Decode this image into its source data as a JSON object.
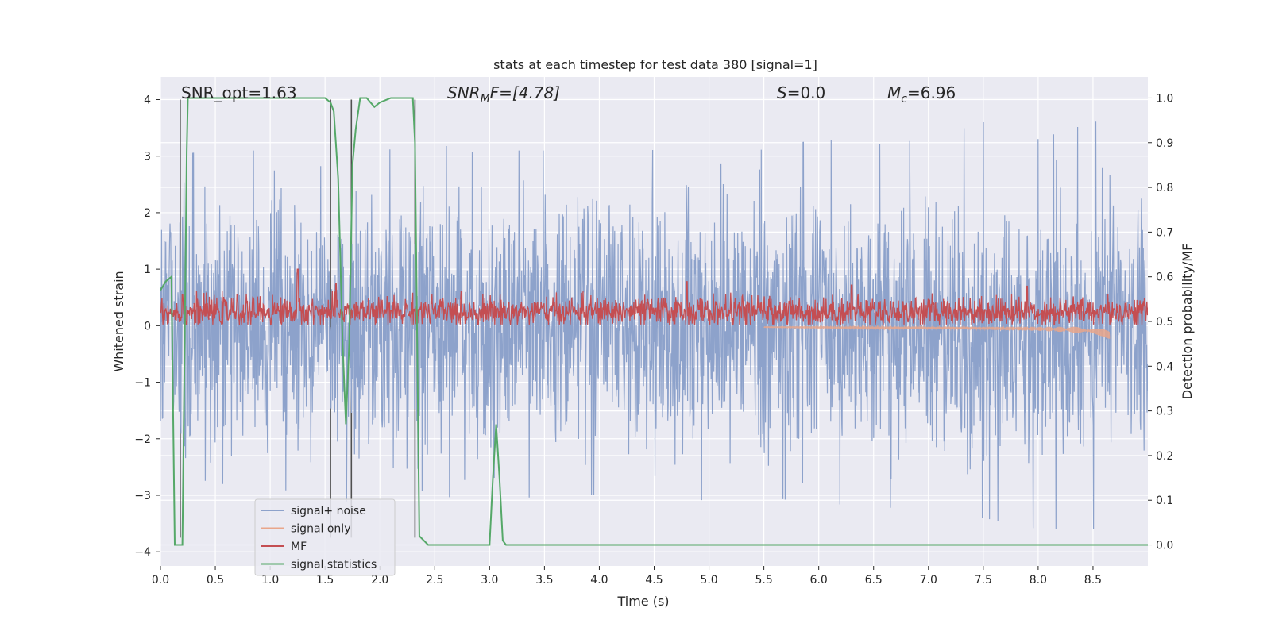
{
  "chart_data": {
    "type": "line",
    "title": "stats at each timestep for test data 380 [signal=1]",
    "xlabel": "Time (s)",
    "ylabel_left": "Whitened strain",
    "ylabel_right": "Detection probability/MF",
    "xlim": [
      0.0,
      9.0
    ],
    "ylim_left": [
      -4.25,
      4.4
    ],
    "ylim_right": [
      -0.047,
      1.047
    ],
    "x_ticks": [
      0.0,
      0.5,
      1.0,
      1.5,
      2.0,
      2.5,
      3.0,
      3.5,
      4.0,
      4.5,
      5.0,
      5.5,
      6.0,
      6.5,
      7.0,
      7.5,
      8.0,
      8.5
    ],
    "x_tick_labels": [
      "0.0",
      "0.5",
      "1.0",
      "1.5",
      "2.0",
      "2.5",
      "3.0",
      "3.5",
      "4.0",
      "4.5",
      "5.0",
      "5.5",
      "6.0",
      "6.5",
      "7.0",
      "7.5",
      "8.0",
      "8.5"
    ],
    "y_left_ticks": [
      -4,
      -3,
      -2,
      -1,
      0,
      1,
      2,
      3,
      4
    ],
    "y_left_tick_labels": [
      "−4",
      "−3",
      "−2",
      "−1",
      "0",
      "1",
      "2",
      "3",
      "4"
    ],
    "y_right_ticks": [
      0.0,
      0.1,
      0.2,
      0.3,
      0.4,
      0.5,
      0.6,
      0.7,
      0.8,
      0.9,
      1.0
    ],
    "y_right_tick_labels": [
      "0.0",
      "0.1",
      "0.2",
      "0.3",
      "0.4",
      "0.5",
      "0.6",
      "0.7",
      "0.8",
      "0.9",
      "1.0"
    ],
    "grid": true,
    "legend_position": "lower-left",
    "annotations": [
      {
        "text": "SNR_opt=1.63",
        "x": 0.19,
        "y": 4.1
      },
      {
        "text": "SNRₘF=[4.78]",
        "x": 2.6,
        "y": 4.1,
        "italic_part": "SNR"
      },
      {
        "text": "S=0.0",
        "x": 5.6,
        "y": 4.1
      },
      {
        "text": "Mᴄ=6.96",
        "x": 6.6,
        "y": 4.1
      }
    ],
    "annotation_text": {
      "snr_opt": "SNR_opt=1.63",
      "snr_mf_main": "SNR",
      "snr_mf_sub": "M",
      "snr_mf_tail": "F=[4.78]",
      "s_main": "S",
      "s_tail": "=0.0",
      "mc_main": "M",
      "mc_sub": "c",
      "mc_tail": "=6.96"
    },
    "vlines_x": [
      0.18,
      1.55,
      1.74,
      2.32
    ],
    "series": [
      {
        "name": "signal+ noise",
        "color": "#8da2cb",
        "axis": "left",
        "style": "dense-noise",
        "envelope_upper": [
          3.0,
          3.1,
          3.1,
          2.8,
          3.1,
          3.2,
          3.1,
          3.1,
          3.4,
          3.1,
          3.4,
          3.1,
          3.3,
          3.2,
          3.3,
          3.6,
          3.3,
          3.6,
          3.8
        ],
        "envelope_lower": [
          -2.5,
          -2.8,
          -2.8,
          -3.2,
          -3.0,
          -2.9,
          -3.4,
          -2.9,
          -3.0,
          -3.0,
          -3.1,
          -3.0,
          -3.2,
          -3.1,
          -3.5,
          -3.4,
          -3.6,
          -3.6,
          -3.6
        ],
        "envelope_x": [
          0.0,
          0.5,
          1.0,
          1.5,
          2.0,
          2.5,
          3.0,
          3.5,
          4.0,
          4.5,
          5.0,
          5.5,
          6.0,
          6.5,
          7.0,
          7.5,
          8.0,
          8.5,
          9.0
        ]
      },
      {
        "name": "signal only",
        "color": "#e9a68b",
        "axis": "left",
        "style": "chirp",
        "x": [
          5.5,
          6.0,
          6.5,
          7.0,
          7.5,
          8.0,
          8.3,
          8.5,
          8.6,
          8.65
        ],
        "amplitude": [
          0.01,
          0.02,
          0.03,
          0.04,
          0.05,
          0.07,
          0.1,
          0.15,
          0.22,
          0.3
        ]
      },
      {
        "name": "MF",
        "color": "#c44e52",
        "axis": "left",
        "style": "dense-noise-positive",
        "x": [
          0.0,
          9.0
        ],
        "mean": 0.25,
        "peak_x": [
          0.2,
          1.25,
          1.6,
          4.8,
          6.3,
          7.9
        ],
        "peak_y": [
          0.55,
          1.0,
          0.75,
          0.78,
          0.72,
          0.7
        ]
      },
      {
        "name": "signal statistics",
        "color": "#55a868",
        "axis": "right",
        "x": [
          0.0,
          0.05,
          0.1,
          0.13,
          0.16,
          0.2,
          0.24,
          0.25,
          0.26,
          0.3,
          0.4,
          0.6,
          0.8,
          1.0,
          1.2,
          1.4,
          1.5,
          1.55,
          1.58,
          1.62,
          1.66,
          1.69,
          1.72,
          1.75,
          1.78,
          1.82,
          1.88,
          1.95,
          2.0,
          2.1,
          2.2,
          2.3,
          2.32,
          2.36,
          2.44,
          2.6,
          2.8,
          3.0,
          3.03,
          3.06,
          3.09,
          3.12,
          3.15,
          3.2,
          3.5,
          4.0,
          5.0,
          6.0,
          7.0,
          8.0,
          9.0
        ],
        "y": [
          0.57,
          0.59,
          0.6,
          0.0,
          0.0,
          0.0,
          0.88,
          1.0,
          1.0,
          1.0,
          1.0,
          1.0,
          1.0,
          1.0,
          1.0,
          1.0,
          1.0,
          0.99,
          0.97,
          0.82,
          0.45,
          0.27,
          0.45,
          0.85,
          0.93,
          1.0,
          1.0,
          0.98,
          0.99,
          1.0,
          1.0,
          1.0,
          0.9,
          0.02,
          0.0,
          0.0,
          0.0,
          0.0,
          0.15,
          0.27,
          0.15,
          0.01,
          0.0,
          0.0,
          0.0,
          0.0,
          0.0,
          0.0,
          0.0,
          0.0,
          0.0
        ]
      }
    ]
  },
  "colors": {
    "plot_background": "#eaeaf2",
    "grid": "#ffffff",
    "vline": "#505050"
  }
}
